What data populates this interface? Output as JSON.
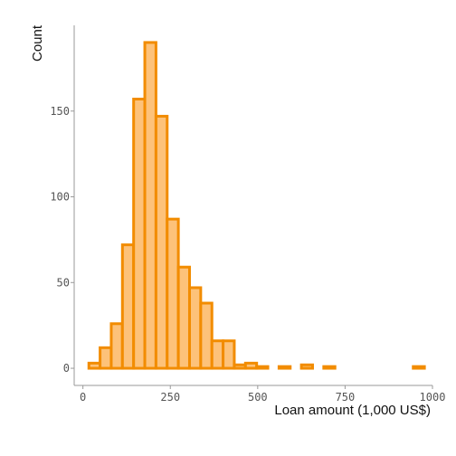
{
  "chart_data": {
    "type": "bar",
    "subtype": "histogram",
    "xlabel": "Loan amount (1,000 US$)",
    "ylabel": "Count",
    "xlim": [
      -25,
      1000
    ],
    "ylim": [
      -10,
      200
    ],
    "xticks": [
      0,
      250,
      500,
      750,
      1000
    ],
    "yticks": [
      0,
      50,
      100,
      150
    ],
    "grid": false,
    "colors": {
      "fill": "#fdc27a",
      "stroke": "#f28c00"
    },
    "bins": [
      {
        "x0": 17,
        "x1": 49,
        "count": 3
      },
      {
        "x0": 49,
        "x1": 81,
        "count": 12
      },
      {
        "x0": 81,
        "x1": 113,
        "count": 26
      },
      {
        "x0": 113,
        "x1": 145,
        "count": 72
      },
      {
        "x0": 145,
        "x1": 177,
        "count": 157
      },
      {
        "x0": 177,
        "x1": 209,
        "count": 190
      },
      {
        "x0": 209,
        "x1": 241,
        "count": 147
      },
      {
        "x0": 241,
        "x1": 273,
        "count": 87
      },
      {
        "x0": 273,
        "x1": 305,
        "count": 59
      },
      {
        "x0": 305,
        "x1": 337,
        "count": 47
      },
      {
        "x0": 337,
        "x1": 369,
        "count": 38
      },
      {
        "x0": 369,
        "x1": 401,
        "count": 16
      },
      {
        "x0": 401,
        "x1": 433,
        "count": 16
      },
      {
        "x0": 433,
        "x1": 465,
        "count": 2
      },
      {
        "x0": 465,
        "x1": 497,
        "count": 3
      },
      {
        "x0": 497,
        "x1": 529,
        "count": 1
      },
      {
        "x0": 529,
        "x1": 561,
        "count": 0
      },
      {
        "x0": 561,
        "x1": 593,
        "count": 1
      },
      {
        "x0": 593,
        "x1": 625,
        "count": 0
      },
      {
        "x0": 625,
        "x1": 657,
        "count": 2
      },
      {
        "x0": 657,
        "x1": 689,
        "count": 0
      },
      {
        "x0": 689,
        "x1": 721,
        "count": 1
      },
      {
        "x0": 721,
        "x1": 753,
        "count": 0
      },
      {
        "x0": 753,
        "x1": 785,
        "count": 0
      },
      {
        "x0": 785,
        "x1": 817,
        "count": 0
      },
      {
        "x0": 817,
        "x1": 849,
        "count": 0
      },
      {
        "x0": 849,
        "x1": 881,
        "count": 0
      },
      {
        "x0": 881,
        "x1": 913,
        "count": 0
      },
      {
        "x0": 913,
        "x1": 945,
        "count": 0
      },
      {
        "x0": 945,
        "x1": 977,
        "count": 1
      }
    ]
  }
}
